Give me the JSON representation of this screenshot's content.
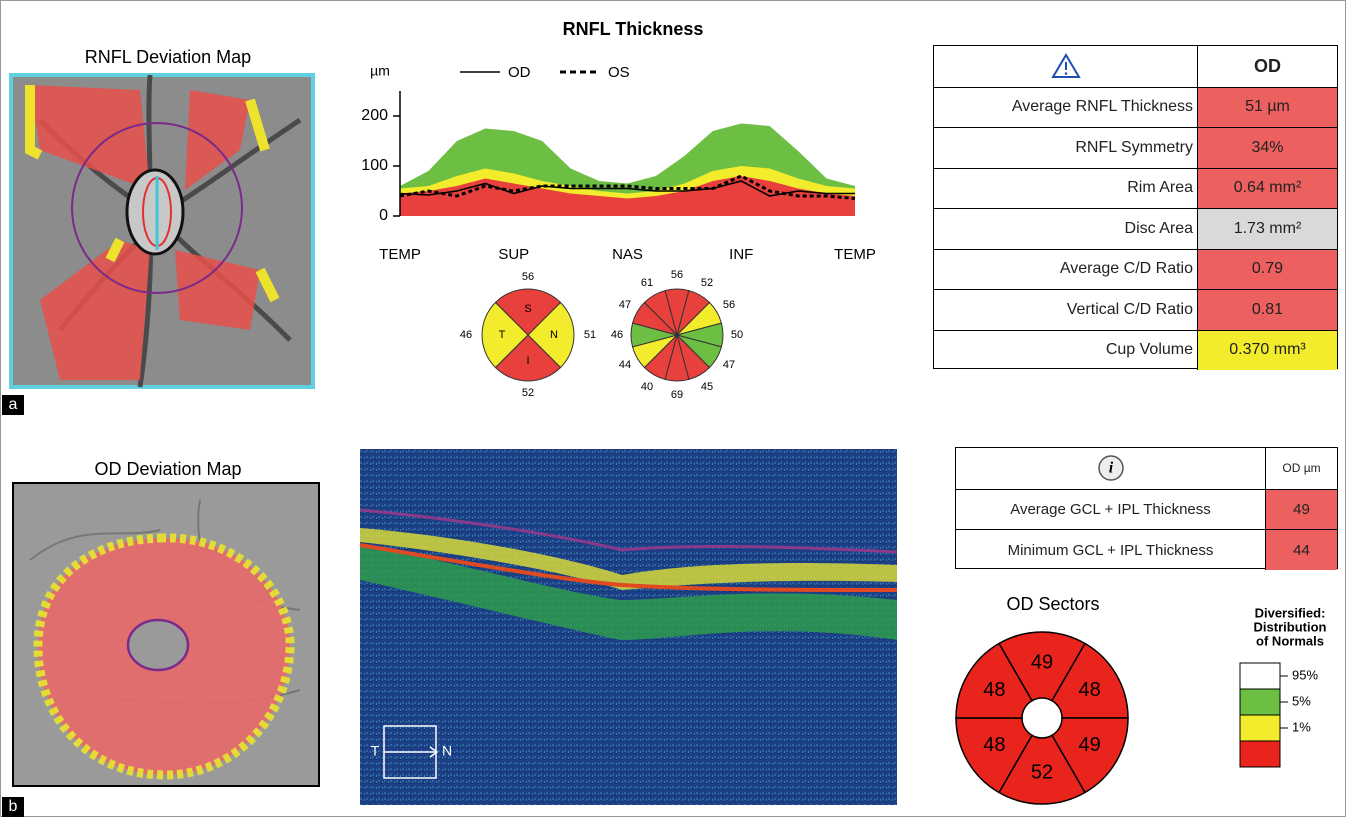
{
  "panel_a": {
    "label": "a",
    "deviation_map": {
      "title": "RNFL Deviation Map"
    },
    "thickness_chart": {
      "type": "line",
      "title": "RNFL Thickness",
      "y_unit": "µm",
      "x": [
        0,
        1,
        2,
        3,
        4,
        5,
        6,
        7,
        8,
        9,
        10,
        11,
        12,
        13,
        14,
        15,
        16
      ],
      "xlim": [
        0,
        16
      ],
      "xticks": [
        {
          "value": 0,
          "label": "TEMP"
        },
        {
          "value": 4,
          "label": "SUP"
        },
        {
          "value": 8,
          "label": "NAS"
        },
        {
          "value": 12,
          "label": "INF"
        },
        {
          "value": 16,
          "label": "TEMP"
        }
      ],
      "ylim": [
        0,
        250
      ],
      "yticks": [
        0,
        100,
        200
      ],
      "bands": [
        {
          "color": "#6dbf44",
          "values": [
            60,
            90,
            150,
            175,
            170,
            150,
            95,
            70,
            65,
            80,
            120,
            170,
            185,
            180,
            130,
            75,
            60
          ]
        },
        {
          "color": "#f2ec2c",
          "values": [
            55,
            60,
            80,
            95,
            85,
            70,
            60,
            50,
            45,
            50,
            65,
            90,
            100,
            95,
            75,
            60,
            55
          ]
        },
        {
          "color": "#e8403c",
          "values": [
            45,
            50,
            60,
            75,
            65,
            55,
            45,
            40,
            35,
            40,
            50,
            70,
            80,
            70,
            55,
            45,
            40
          ]
        }
      ],
      "series": [
        {
          "name": "OD",
          "color": "#000000",
          "dash": false,
          "values": [
            45,
            42,
            50,
            65,
            45,
            60,
            55,
            55,
            55,
            50,
            50,
            55,
            70,
            40,
            50,
            45,
            45
          ]
        },
        {
          "name": "OS",
          "color": "#000000",
          "dash": true,
          "values": [
            40,
            50,
            40,
            60,
            50,
            60,
            60,
            60,
            60,
            55,
            55,
            55,
            80,
            50,
            40,
            40,
            35
          ]
        }
      ]
    },
    "quadrants": [
      {
        "letter": "S",
        "value": 56,
        "color": "#e8403c"
      },
      {
        "letter": "N",
        "value": 51,
        "color": "#f2ec2c"
      },
      {
        "letter": "I",
        "value": 52,
        "color": "#e8403c"
      },
      {
        "letter": "T",
        "value": 46,
        "color": "#f2ec2c"
      }
    ],
    "clock_hours": [
      {
        "value": 56,
        "color": "#e8403c"
      },
      {
        "value": 52,
        "color": "#e8403c"
      },
      {
        "value": 56,
        "color": "#f2ec2c"
      },
      {
        "value": 50,
        "color": "#6dbf44"
      },
      {
        "value": 47,
        "color": "#6dbf44"
      },
      {
        "value": 45,
        "color": "#e8403c"
      },
      {
        "value": 69,
        "color": "#e8403c"
      },
      {
        "value": 40,
        "color": "#e8403c"
      },
      {
        "value": 44,
        "color": "#f2ec2c"
      },
      {
        "value": 46,
        "color": "#6dbf44"
      },
      {
        "value": 47,
        "color": "#e8403c"
      },
      {
        "value": 61,
        "color": "#e8403c"
      }
    ],
    "summary_table": {
      "header": "OD",
      "rows": [
        {
          "label": "Average RNFL Thickness",
          "value": "51 µm",
          "color": "#ec6060"
        },
        {
          "label": "RNFL Symmetry",
          "value": "34%",
          "color": "#ec6060"
        },
        {
          "label": "Rim Area",
          "value": "0.64 mm²",
          "color": "#ec6060"
        },
        {
          "label": "Disc Area",
          "value": "1.73 mm²",
          "color": "#d9d9d9"
        },
        {
          "label": "Average C/D Ratio",
          "value": "0.79",
          "color": "#ec6060"
        },
        {
          "label": "Vertical C/D Ratio",
          "value": "0.81",
          "color": "#ec6060"
        },
        {
          "label": "Cup Volume",
          "value": "0.370 mm³",
          "color": "#f2ec2c"
        }
      ]
    }
  },
  "panel_b": {
    "label": "b",
    "deviation_map": {
      "title": "OD Deviation Map"
    },
    "oct_scan": {
      "temporal": "T",
      "nasal": "N"
    },
    "gcl_table": {
      "header": "OD µm",
      "rows": [
        {
          "label": "Average GCL + IPL Thickness",
          "value": 49,
          "color": "#ec6060"
        },
        {
          "label": "Minimum GCL + IPL Thickness",
          "value": 44,
          "color": "#ec6060"
        }
      ]
    },
    "sectors": {
      "title": "OD Sectors",
      "color": "#e8241c",
      "values": [
        49,
        48,
        49,
        52,
        48,
        48
      ]
    },
    "normals_legend": {
      "title": [
        "Diversified:",
        "Distribution",
        "of Normals"
      ],
      "colors": [
        "#ffffff",
        "#6dbf44",
        "#f2ec2c",
        "#e8241c"
      ],
      "labels": [
        "95%",
        "5%",
        "1%"
      ]
    }
  }
}
